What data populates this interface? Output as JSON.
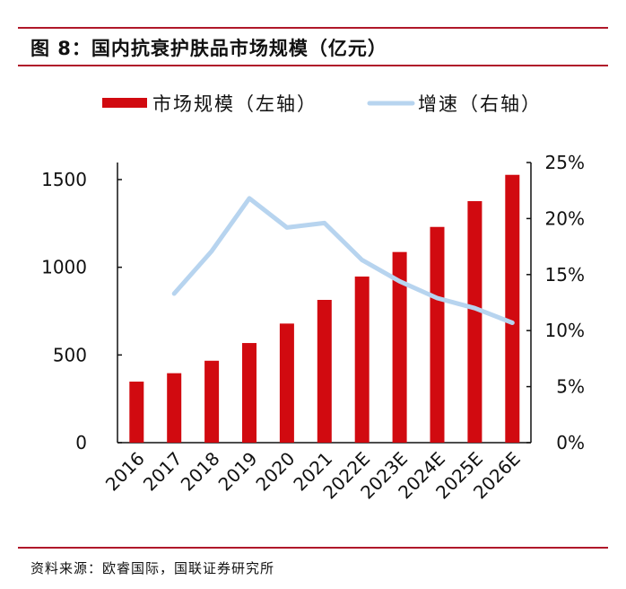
{
  "title": "图 8：国内抗衰护肤品市场规模（亿元）",
  "source": "资料来源：欧睿国际，国联证券研究所",
  "chart_data": {
    "type": "bar",
    "title": "图 8：国内抗衰护肤品市场规模（亿元）",
    "categories": [
      "2016",
      "2017",
      "2018",
      "2019",
      "2020",
      "2021",
      "2022E",
      "2023E",
      "2024E",
      "2025E",
      "2026E"
    ],
    "series": [
      {
        "name": "市场规模（左轴）",
        "type": "bar",
        "axis": "left",
        "color": "#d10a10",
        "values": [
          348,
          396,
          467,
          568,
          679,
          814,
          947,
          1087,
          1230,
          1377,
          1527
        ]
      },
      {
        "name": "增速（右轴）",
        "type": "line",
        "axis": "right",
        "color": "#b7d4ef",
        "values": [
          null,
          13.3,
          17.1,
          21.8,
          19.2,
          19.6,
          16.3,
          14.4,
          12.9,
          12.0,
          10.7
        ]
      }
    ],
    "left_axis": {
      "ylim": [
        0,
        1600
      ],
      "ticks": [
        0,
        500,
        1000,
        1500
      ],
      "tick_labels": [
        "0",
        "500",
        "1000",
        "1500"
      ]
    },
    "right_axis": {
      "ylim": [
        0,
        25
      ],
      "ticks": [
        0,
        5,
        10,
        15,
        20,
        25
      ],
      "tick_labels": [
        "0%",
        "5%",
        "10%",
        "15%",
        "20%",
        "25%"
      ]
    },
    "legend": {
      "placement": "top",
      "items": [
        "市场规模（左轴）",
        "增速（右轴）"
      ]
    },
    "grid": false
  }
}
